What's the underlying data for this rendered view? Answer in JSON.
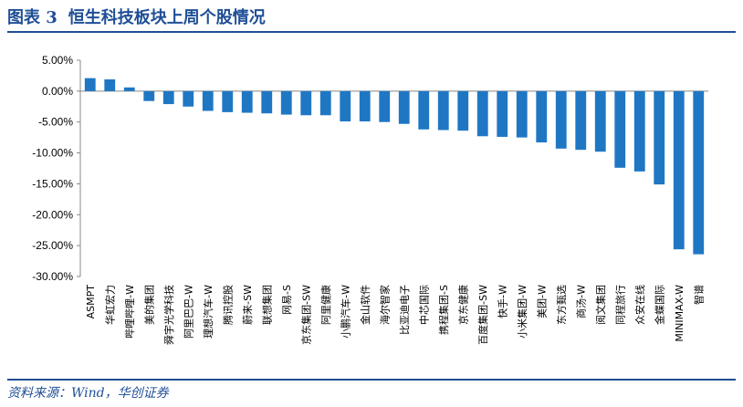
{
  "header": {
    "figure_label": "图表 3",
    "title": "恒生科技板块上周个股情况"
  },
  "footer": {
    "source": "资料来源：Wind，华创证券"
  },
  "chart_data": {
    "type": "bar",
    "title": "恒生科技板块上周个股情况",
    "xlabel": "",
    "ylabel": "",
    "ylim": [
      -30,
      5
    ],
    "yticks": [
      "5.00%",
      "0.00%",
      "-5.00%",
      "-10.00%",
      "-15.00%",
      "-20.00%",
      "-25.00%",
      "-30.00%"
    ],
    "ytick_values": [
      5,
      0,
      -5,
      -10,
      -15,
      -20,
      -25,
      -30
    ],
    "grid": false,
    "bar_color": "#1f77c4",
    "categories": [
      "ASMPT",
      "华虹宏力",
      "哔哩哔哩-W",
      "美的集团",
      "舜宇光学科技",
      "阿里巴巴-W",
      "理想汽车-W",
      "腾讯控股",
      "蔚来-SW",
      "联想集团",
      "网易-S",
      "京东集团-SW",
      "阿里健康",
      "小鹏汽车-W",
      "金山软件",
      "海尔智家",
      "比亚迪电子",
      "中芯国际",
      "携程集团-S",
      "京东健康",
      "百度集团-SW",
      "快手-W",
      "小米集团-W",
      "美团-W",
      "东方甄选",
      "商汤-W",
      "阅文集团",
      "同程旅行",
      "众安在线",
      "金蝶国际",
      "MINIMAX-W",
      "智谱"
    ],
    "values": [
      2.1,
      1.9,
      0.6,
      -1.6,
      -2.1,
      -2.5,
      -3.2,
      -3.4,
      -3.5,
      -3.6,
      -3.8,
      -3.9,
      -3.9,
      -4.9,
      -4.9,
      -5.0,
      -5.3,
      -6.2,
      -6.3,
      -6.4,
      -7.3,
      -7.4,
      -7.5,
      -8.3,
      -9.3,
      -9.5,
      -9.8,
      -12.4,
      -13.0,
      -15.1,
      -25.6,
      -26.4
    ]
  }
}
